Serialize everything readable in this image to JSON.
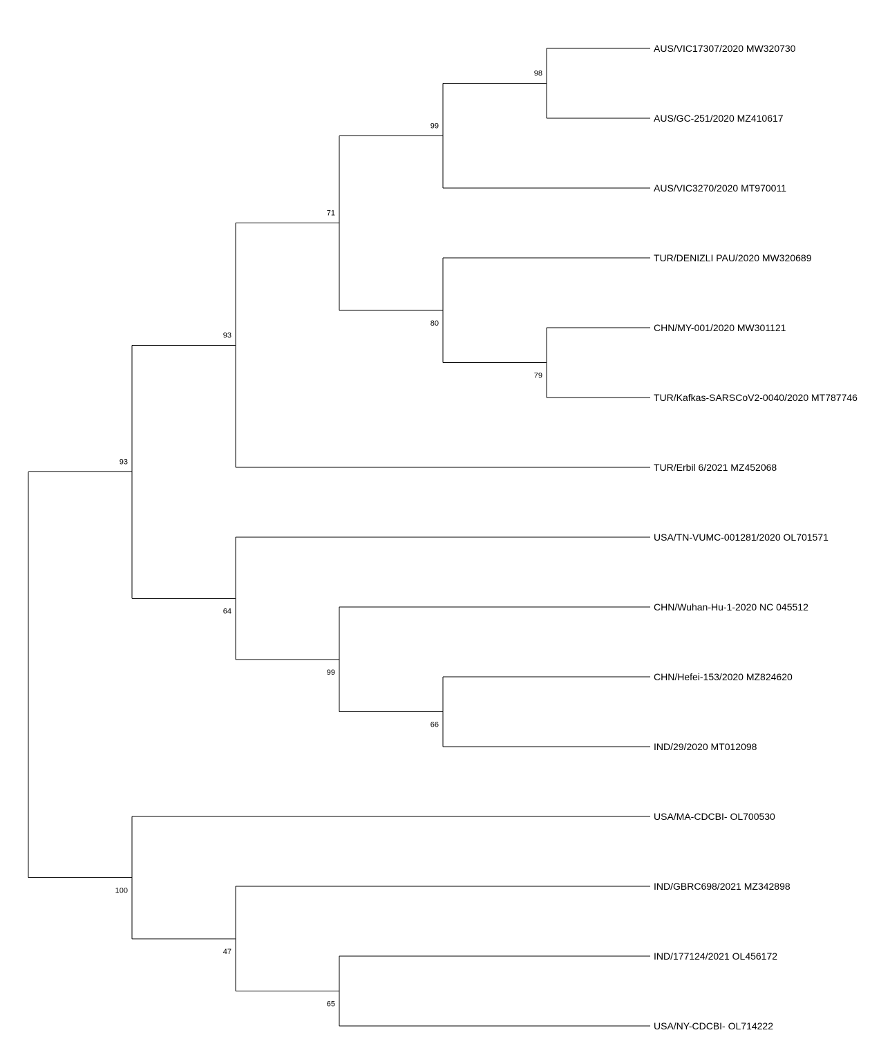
{
  "tree": {
    "taxa": [
      "AUS/VIC17307/2020 MW320730",
      "AUS/GC-251/2020 MZ410617",
      "AUS/VIC3270/2020 MT970011",
      "TUR/DENIZLI PAU/2020 MW320689",
      "CHN/MY-001/2020 MW301121",
      "TUR/Kafkas-SARSCoV2-0040/2020 MT787746",
      "TUR/Erbil 6/2021 MZ452068",
      "USA/TN-VUMC-001281/2020 OL701571",
      "CHN/Wuhan-Hu-1-2020 NC 045512",
      "CHN/Hefei-153/2020 MZ824620",
      "IND/29/2020 MT012098",
      "USA/MA-CDCBI- OL700530",
      "IND/GBRC698/2021 MZ342898",
      "IND/177124/2021 OL456172",
      "USA/NY-CDCBI- OL714222"
    ],
    "root": {
      "children": [
        {
          "support": "93",
          "children": [
            {
              "support": "93",
              "children": [
                {
                  "support": "71",
                  "children": [
                    {
                      "support": "99",
                      "children": [
                        {
                          "support": "98",
                          "children": [
                            {
                              "taxon": 0
                            },
                            {
                              "taxon": 1
                            }
                          ]
                        },
                        {
                          "taxon": 2
                        }
                      ]
                    },
                    {
                      "support": "80",
                      "children": [
                        {
                          "taxon": 3
                        },
                        {
                          "support": "79",
                          "children": [
                            {
                              "taxon": 4
                            },
                            {
                              "taxon": 5
                            }
                          ]
                        }
                      ]
                    }
                  ]
                },
                {
                  "taxon": 6
                }
              ]
            },
            {
              "support": "64",
              "children": [
                {
                  "taxon": 7
                },
                {
                  "support": "99",
                  "children": [
                    {
                      "taxon": 8
                    },
                    {
                      "support": "66",
                      "children": [
                        {
                          "taxon": 9
                        },
                        {
                          "taxon": 10
                        }
                      ]
                    }
                  ]
                }
              ]
            }
          ]
        },
        {
          "support": "100",
          "children": [
            {
              "taxon": 11
            },
            {
              "support": "47",
              "children": [
                {
                  "taxon": 12
                },
                {
                  "support": "65",
                  "children": [
                    {
                      "taxon": 13
                    },
                    {
                      "taxon": 14
                    }
                  ]
                }
              ]
            }
          ]
        }
      ]
    }
  }
}
